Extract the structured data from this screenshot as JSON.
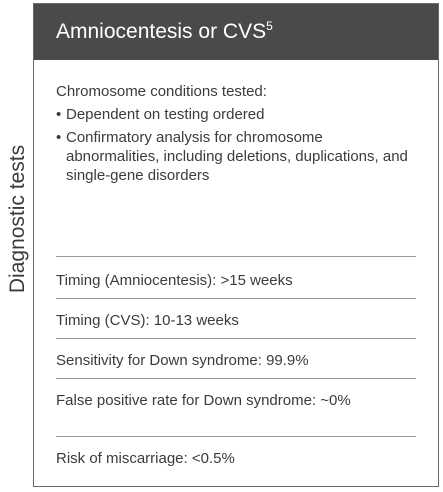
{
  "side_label": "Diagnostic tests",
  "header": {
    "title": "Amniocentesis or CVS",
    "superscript": "5"
  },
  "conditions": {
    "heading": "Chromosome conditions tested:",
    "bullet_symbol": "•",
    "items": [
      "Dependent on testing ordered",
      "Confirmatory analysis for chromosome abnormalities, including deletions, duplications, and single-gene disorders"
    ]
  },
  "rows": [
    "Timing (Amniocentesis): >15 weeks",
    "Timing (CVS): 10-13 weeks",
    "Sensitivity for Down syndrome: 99.9%",
    "False positive rate for Down syndrome: ~0%",
    "Risk of miscarriage: <0.5%"
  ]
}
